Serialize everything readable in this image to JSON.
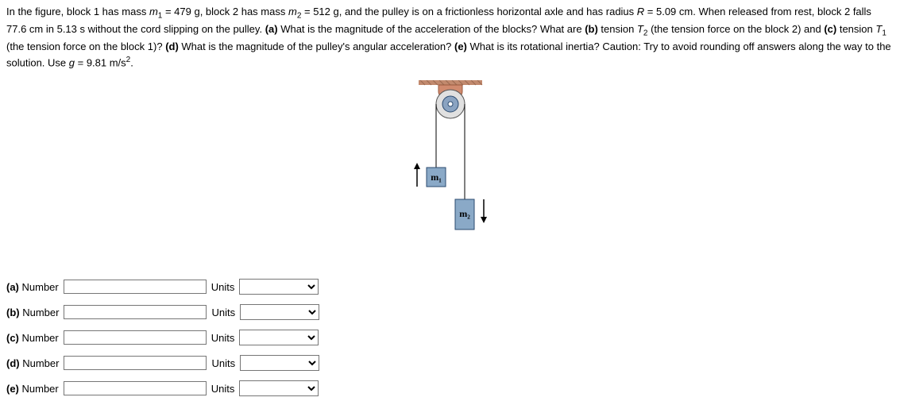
{
  "problem": {
    "text_html": "In the figure, block 1 has mass <i>m</i><span class='sub'>1</span> = {m1} g, block 2 has mass <i>m</i><span class='sub'>2</span> = {m2} g, and the pulley is on a frictionless horizontal axle and has radius <i>R</i> = {R} cm. When released from rest, block 2 falls {fall_d} cm in {fall_t} s without the cord slipping on the pulley. <b>(a)</b> What is the magnitude of the acceleration of the blocks? What are <b>(b)</b> tension <i>T</i><span class='sub'>2</span> (the tension force on the block 2) and <b>(c)</b> tension <i>T</i><span class='sub'>1</span> (the tension force on the block 1)? <b>(d)</b> What is the magnitude of the pulley's angular acceleration? <b>(e)</b> What is its rotational inertia? Caution: Try to avoid rounding off answers along the way to the solution. Use <i>g</i> = {g} m/s<span class='sup'>2</span>.",
    "values": {
      "m1": "479",
      "m2": "512",
      "R": "5.09",
      "fall_d": "77.6",
      "fall_t": "5.13",
      "g": "9.81"
    }
  },
  "figure": {
    "bracket_color": "#d08a6e",
    "pulley_outer_fill": "#e0e0e0",
    "pulley_outer_stroke": "#555555",
    "axle_fill": "#8aa3c1",
    "axle_stroke": "#2b4a6f",
    "axle_bolt_fill": "#ffffff",
    "cord_color": "#000000",
    "block_fill": "#8aa9c7",
    "block_stroke": "#2b4a6f",
    "arrow_color": "#000000",
    "ceiling_color": "#c28a6e",
    "label_m1": "m₁",
    "label_m2": "m₂"
  },
  "answers": [
    {
      "id": "a",
      "label_prefix": "(a)",
      "label_number": "Number",
      "label_units": "Units"
    },
    {
      "id": "b",
      "label_prefix": "(b)",
      "label_number": "Number",
      "label_units": "Units"
    },
    {
      "id": "c",
      "label_prefix": "(c)",
      "label_number": "Number",
      "label_units": "Units"
    },
    {
      "id": "d",
      "label_prefix": "(d)",
      "label_number": "Number",
      "label_units": "Units"
    },
    {
      "id": "e",
      "label_prefix": "(e)",
      "label_number": "Number",
      "label_units": "Units"
    }
  ]
}
